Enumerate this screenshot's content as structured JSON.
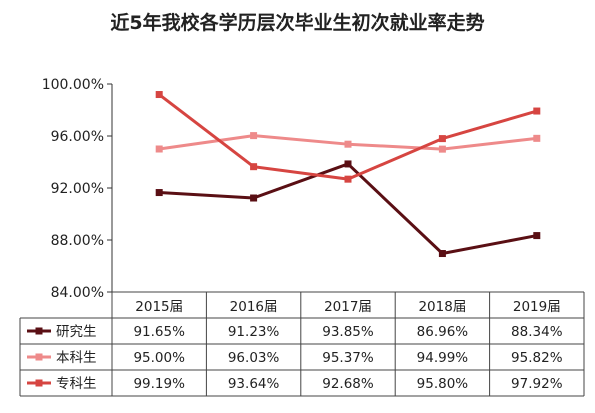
{
  "chart_data": {
    "type": "line",
    "title": "近5年我校各学历层次毕业生初次就业率走势",
    "categories": [
      "2015届",
      "2016届",
      "2017届",
      "2018届",
      "2019届"
    ],
    "ylim": [
      84,
      100
    ],
    "yticks": [
      "84.00%",
      "88.00%",
      "92.00%",
      "96.00%",
      "100.00%"
    ],
    "yticks_values": [
      84,
      88,
      92,
      96,
      100
    ],
    "grid": false,
    "legend": "table-left",
    "series": [
      {
        "name": "研究生",
        "color": "#5a0f14",
        "values": [
          91.65,
          91.23,
          93.85,
          86.96,
          88.34
        ],
        "labels": [
          "91.65%",
          "91.23%",
          "93.85%",
          "86.96%",
          "88.34%"
        ]
      },
      {
        "name": "本科生",
        "color": "#ee8a8a",
        "values": [
          95.0,
          96.03,
          95.37,
          94.99,
          95.82
        ],
        "labels": [
          "95.00%",
          "96.03%",
          "95.37%",
          "94.99%",
          "95.82%"
        ]
      },
      {
        "name": "专科生",
        "color": "#d64541",
        "values": [
          99.19,
          93.64,
          92.68,
          95.8,
          97.92
        ],
        "labels": [
          "99.19%",
          "93.64%",
          "92.68%",
          "95.80%",
          "97.92%"
        ]
      }
    ]
  }
}
